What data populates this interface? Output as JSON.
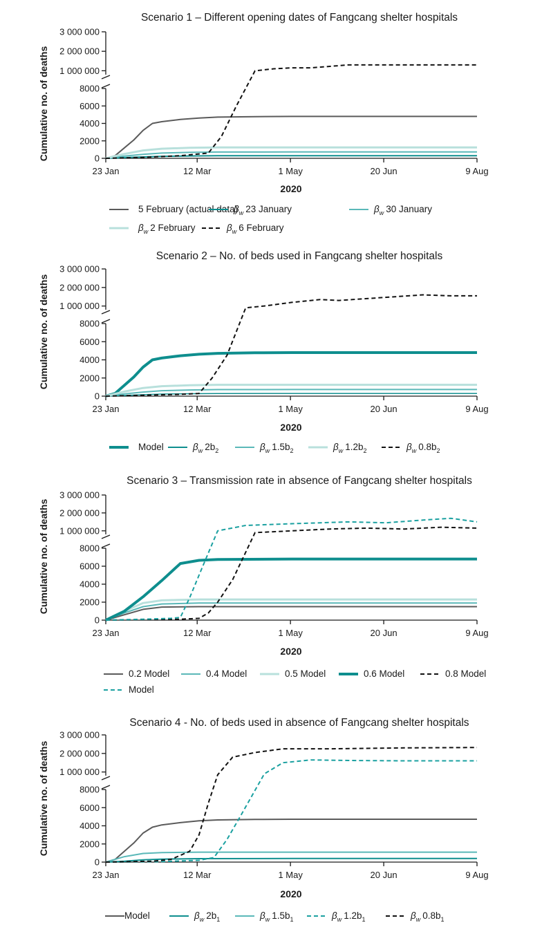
{
  "chart_data": [
    {
      "type": "line",
      "title": "Scenario 1 – Different opening dates of Fangcang shelter hospitals",
      "ylabel": "Cumulative no. of deaths",
      "xlabel": "2020",
      "x_ticks": [
        "23 Jan",
        "12 Mar",
        "1 May",
        "20 Jun",
        "9 Aug"
      ],
      "x_tick_days": [
        0,
        49,
        99,
        149,
        199
      ],
      "y_ticks_lower": [
        "0",
        "2000",
        "4000",
        "6000",
        "8000"
      ],
      "y_ticks_upper": [
        "1 000 000",
        "2 000 000",
        "3 000 000"
      ],
      "ylim_lower": [
        0,
        8000
      ],
      "ylim_upper": [
        800000,
        3000000
      ],
      "series": [
        {
          "name": "5 February (actual data)",
          "legend_text": "5 February (actual data)",
          "color": "#5a5a5a",
          "style": "solid",
          "width": 2,
          "x": [
            0,
            5,
            10,
            15,
            20,
            25,
            30,
            40,
            50,
            60,
            80,
            100,
            130,
            160,
            199
          ],
          "values": [
            0,
            300,
            1200,
            2100,
            3200,
            4000,
            4200,
            4450,
            4620,
            4720,
            4780,
            4800,
            4800,
            4800,
            4800
          ]
        },
        {
          "name": "βw 23 January",
          "legend_prefix": "β",
          "legend_sub": "w",
          "legend_text": "23 January",
          "color": "#0e8e8e",
          "style": "solid",
          "width": 2,
          "x": [
            0,
            10,
            20,
            30,
            45,
            60,
            100,
            150,
            199
          ],
          "values": [
            0,
            80,
            160,
            230,
            270,
            290,
            300,
            300,
            300
          ]
        },
        {
          "name": "βw 30 January",
          "legend_prefix": "β",
          "legend_sub": "w",
          "legend_text": "30 January",
          "color": "#5ab8b8",
          "style": "solid",
          "width": 2,
          "x": [
            0,
            10,
            20,
            30,
            45,
            60,
            100,
            150,
            199
          ],
          "values": [
            0,
            250,
            450,
            600,
            680,
            720,
            730,
            730,
            730
          ]
        },
        {
          "name": "βw 2 February",
          "legend_prefix": "β",
          "legend_sub": "w",
          "legend_text": "2 February",
          "color": "#b8e0dc",
          "style": "solid",
          "width": 3,
          "x": [
            0,
            10,
            20,
            30,
            45,
            60,
            100,
            150,
            199
          ],
          "values": [
            0,
            500,
            900,
            1100,
            1200,
            1250,
            1250,
            1250,
            1250
          ]
        },
        {
          "name": "βw 6 February",
          "legend_prefix": "β",
          "legend_sub": "w",
          "legend_text": "6 February",
          "color": "#111111",
          "style": "dashed",
          "width": 2,
          "x": [
            0,
            20,
            40,
            55,
            62,
            70,
            80,
            90,
            100,
            110,
            130,
            150,
            170,
            199
          ],
          "values": [
            0,
            100,
            300,
            600,
            2500,
            6000,
            1000000,
            1100000,
            1150000,
            1150000,
            1300000,
            1300000,
            1300000,
            1300000
          ]
        }
      ]
    },
    {
      "type": "line",
      "title": "Scenario 2 – No. of beds used in Fangcang shelter hospitals",
      "ylabel": "Cumulative no. of deaths",
      "xlabel": "2020",
      "x_ticks": [
        "23 Jan",
        "12 Mar",
        "1 May",
        "20 Jun",
        "9 Aug"
      ],
      "x_tick_days": [
        0,
        49,
        99,
        149,
        199
      ],
      "y_ticks_lower": [
        "0",
        "2000",
        "4000",
        "6000",
        "8000"
      ],
      "y_ticks_upper": [
        "1 000 000",
        "2 000 000",
        "3 000 000"
      ],
      "ylim_lower": [
        0,
        8000
      ],
      "ylim_upper": [
        800000,
        3000000
      ],
      "series": [
        {
          "name": "Model",
          "legend_text": "Model",
          "color": "#0e8e8e",
          "style": "solid",
          "width": 4,
          "x": [
            0,
            5,
            10,
            15,
            20,
            25,
            30,
            40,
            50,
            60,
            80,
            100,
            130,
            160,
            199
          ],
          "values": [
            0,
            300,
            1200,
            2100,
            3200,
            4000,
            4200,
            4450,
            4620,
            4720,
            4780,
            4800,
            4800,
            4800,
            4800
          ]
        },
        {
          "name": "βw 2b2",
          "legend_prefix": "β",
          "legend_sub": "w",
          "legend_text": "2b",
          "legend_sub2": "2",
          "color": "#0e8e8e",
          "style": "solid",
          "width": 1.5,
          "x": [
            0,
            10,
            20,
            30,
            45,
            60,
            100,
            150,
            199
          ],
          "values": [
            0,
            80,
            160,
            230,
            270,
            290,
            300,
            300,
            300
          ]
        },
        {
          "name": "βw 1.5b2",
          "legend_prefix": "β",
          "legend_sub": "w",
          "legend_text": "1.5b",
          "legend_sub2": "2",
          "color": "#5ab8b8",
          "style": "solid",
          "width": 2,
          "x": [
            0,
            10,
            20,
            30,
            45,
            60,
            100,
            150,
            199
          ],
          "values": [
            0,
            250,
            450,
            600,
            680,
            720,
            730,
            730,
            730
          ]
        },
        {
          "name": "βw 1.2b2",
          "legend_prefix": "β",
          "legend_sub": "w",
          "legend_text": "1.2b",
          "legend_sub2": "2",
          "color": "#b8e0dc",
          "style": "solid",
          "width": 3,
          "x": [
            0,
            10,
            20,
            30,
            45,
            60,
            100,
            150,
            199
          ],
          "values": [
            0,
            500,
            900,
            1100,
            1200,
            1250,
            1250,
            1250,
            1250
          ]
        },
        {
          "name": "βw 0.8b2",
          "legend_prefix": "β",
          "legend_sub": "w",
          "legend_text": "0.8b",
          "legend_sub2": "2",
          "color": "#111111",
          "style": "dashed",
          "width": 2,
          "x": [
            0,
            20,
            40,
            50,
            57,
            65,
            75,
            85,
            100,
            115,
            125,
            140,
            170,
            185,
            199
          ],
          "values": [
            0,
            100,
            200,
            300,
            2000,
            4500,
            900000,
            1000000,
            1200000,
            1350000,
            1300000,
            1400000,
            1600000,
            1550000,
            1550000
          ]
        }
      ]
    },
    {
      "type": "line",
      "title": "Scenario 3 – Transmission rate in absence of Fangcang shelter hospitals",
      "ylabel": "Cumulative no. of deaths",
      "xlabel": "2020",
      "x_ticks": [
        "23 Jan",
        "12 Mar",
        "1 May",
        "20 Jun",
        "9 Aug"
      ],
      "x_tick_days": [
        0,
        49,
        99,
        149,
        199
      ],
      "y_ticks_lower": [
        "0",
        "2000",
        "4000",
        "6000",
        "8000"
      ],
      "y_ticks_upper": [
        "1 000 000",
        "2 000 000",
        "3 000 000"
      ],
      "ylim_lower": [
        0,
        8000
      ],
      "ylim_upper": [
        800000,
        3000000
      ],
      "series": [
        {
          "name": "0.2 Model",
          "legend_text": "0.2 Model",
          "color": "#5a5a5a",
          "style": "solid",
          "width": 2,
          "x": [
            0,
            10,
            20,
            30,
            50,
            100,
            150,
            199
          ],
          "values": [
            0,
            600,
            1200,
            1450,
            1500,
            1500,
            1500,
            1500
          ]
        },
        {
          "name": "0.4 Model",
          "legend_text": "0.4 Model",
          "color": "#5ab8b8",
          "style": "solid",
          "width": 2,
          "x": [
            0,
            10,
            20,
            30,
            50,
            100,
            150,
            199
          ],
          "values": [
            0,
            800,
            1500,
            1800,
            1900,
            1900,
            1900,
            1900
          ]
        },
        {
          "name": "0.5 Model",
          "legend_text": "0.5 Model",
          "color": "#b8e0dc",
          "style": "solid",
          "width": 3,
          "x": [
            0,
            10,
            20,
            30,
            50,
            100,
            150,
            199
          ],
          "values": [
            0,
            1000,
            1900,
            2200,
            2300,
            2300,
            2300,
            2300
          ]
        },
        {
          "name": "0.6 Model",
          "legend_text": "0.6 Model",
          "color": "#0e8e8e",
          "style": "solid",
          "width": 4,
          "x": [
            0,
            10,
            20,
            30,
            40,
            50,
            60,
            100,
            150,
            199
          ],
          "values": [
            0,
            1000,
            2600,
            4400,
            6300,
            6650,
            6750,
            6800,
            6800,
            6800
          ]
        },
        {
          "name": "0.8 Model",
          "legend_text": "0.8 Model",
          "color": "#111111",
          "style": "dashed",
          "width": 2,
          "x": [
            0,
            20,
            40,
            50,
            55,
            60,
            68,
            80,
            90,
            100,
            120,
            140,
            160,
            180,
            199
          ],
          "values": [
            0,
            50,
            100,
            200,
            800,
            2000,
            4500,
            900000,
            950000,
            1000000,
            1100000,
            1150000,
            1100000,
            1200000,
            1150000
          ]
        },
        {
          "name": "Model",
          "legend_text": "Model",
          "color": "#1aa0a0",
          "style": "dashed",
          "width": 2,
          "x": [
            0,
            20,
            35,
            40,
            45,
            52,
            60,
            75,
            100,
            130,
            150,
            170,
            185,
            199
          ],
          "values": [
            0,
            100,
            200,
            300,
            2500,
            6000,
            1000000,
            1300000,
            1400000,
            1500000,
            1450000,
            1600000,
            1700000,
            1500000
          ]
        }
      ]
    },
    {
      "type": "line",
      "title": "Scenario 4 - No. of beds used in absence of Fangcang shelter hospitals",
      "ylabel": "Cumulative no. of deaths",
      "xlabel": "2020",
      "x_ticks": [
        "23 Jan",
        "12 Mar",
        "1 May",
        "20 Jun",
        "9 Aug"
      ],
      "x_tick_days": [
        0,
        49,
        99,
        149,
        199
      ],
      "y_ticks_lower": [
        "0",
        "2000",
        "4000",
        "6000",
        "8000"
      ],
      "y_ticks_upper": [
        "1 000 000",
        "2 000 000",
        "3 000 000"
      ],
      "ylim_lower": [
        0,
        8000
      ],
      "ylim_upper": [
        800000,
        3000000
      ],
      "series": [
        {
          "name": "Model",
          "legend_text": "Model",
          "color": "#5a5a5a",
          "style": "solid",
          "width": 2,
          "x": [
            0,
            5,
            10,
            15,
            20,
            25,
            30,
            40,
            50,
            60,
            80,
            100,
            130,
            160,
            199
          ],
          "values": [
            0,
            300,
            1200,
            2100,
            3200,
            3850,
            4100,
            4350,
            4550,
            4650,
            4700,
            4720,
            4720,
            4720,
            4720
          ]
        },
        {
          "name": "βw 2b1",
          "legend_prefix": "β",
          "legend_sub": "w",
          "legend_text": "2b",
          "legend_sub2": "1",
          "color": "#0e8e8e",
          "style": "solid",
          "width": 2,
          "x": [
            0,
            10,
            20,
            30,
            50,
            100,
            150,
            199
          ],
          "values": [
            0,
            100,
            250,
            330,
            380,
            400,
            400,
            400
          ]
        },
        {
          "name": "βw 1.5b1",
          "legend_prefix": "β",
          "legend_sub": "w",
          "legend_text": "1.5b",
          "legend_sub2": "1",
          "color": "#5ab8b8",
          "style": "solid",
          "width": 2,
          "x": [
            0,
            10,
            20,
            30,
            50,
            100,
            150,
            199
          ],
          "values": [
            0,
            600,
            950,
            1050,
            1100,
            1100,
            1100,
            1100
          ]
        },
        {
          "name": "βw 1.2b1",
          "legend_prefix": "β",
          "legend_sub": "w",
          "legend_text": "1.2b",
          "legend_sub2": "1",
          "color": "#1aa0a0",
          "style": "dashed",
          "width": 2,
          "x": [
            0,
            30,
            50,
            58,
            65,
            72,
            85,
            95,
            110,
            130,
            160,
            199
          ],
          "values": [
            0,
            50,
            200,
            500,
            2500,
            5000,
            900000,
            1500000,
            1650000,
            1620000,
            1600000,
            1600000
          ]
        },
        {
          "name": "βw 0.8b1",
          "legend_prefix": "β",
          "legend_sub": "w",
          "legend_text": "0.8b",
          "legend_sub2": "1",
          "color": "#111111",
          "style": "dashed",
          "width": 2,
          "x": [
            0,
            25,
            35,
            45,
            50,
            55,
            60,
            68,
            80,
            95,
            120,
            160,
            199
          ],
          "values": [
            0,
            100,
            300,
            1200,
            3000,
            6500,
            850000,
            1800000,
            2050000,
            2250000,
            2250000,
            2300000,
            2320000
          ]
        }
      ]
    }
  ]
}
